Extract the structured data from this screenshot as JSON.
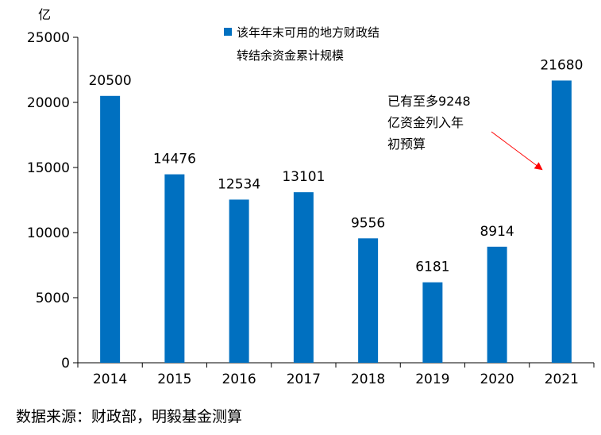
{
  "chart_data": {
    "type": "bar",
    "unit_label": "亿",
    "categories": [
      "2014",
      "2015",
      "2016",
      "2017",
      "2018",
      "2019",
      "2020",
      "2021"
    ],
    "series": [
      {
        "name": "该年年末可用的地方财政结转结余资金累计规模",
        "values": [
          20500,
          14476,
          12534,
          13101,
          9556,
          6181,
          8914,
          21680
        ],
        "color": "#0070C0"
      }
    ],
    "data_labels": [
      "20500",
      "14476",
      "12534",
      "13101",
      "9556",
      "6181",
      "8914",
      "21680"
    ],
    "y_ticks": [
      "0",
      "5000",
      "10000",
      "15000",
      "20000",
      "25000"
    ],
    "ylim": [
      0,
      25000
    ],
    "legend": {
      "line1": "该年年末可用的地方财政结",
      "line2": "转结余资金累计规模",
      "position": "top-center"
    },
    "annotation": {
      "lines": [
        "已有至多9248",
        "亿资金列入年",
        "初预算"
      ],
      "arrow_color": "#FF0000",
      "target_category": "2021"
    },
    "grid": false
  },
  "source_note": "数据来源：财政部，明毅基金测算"
}
